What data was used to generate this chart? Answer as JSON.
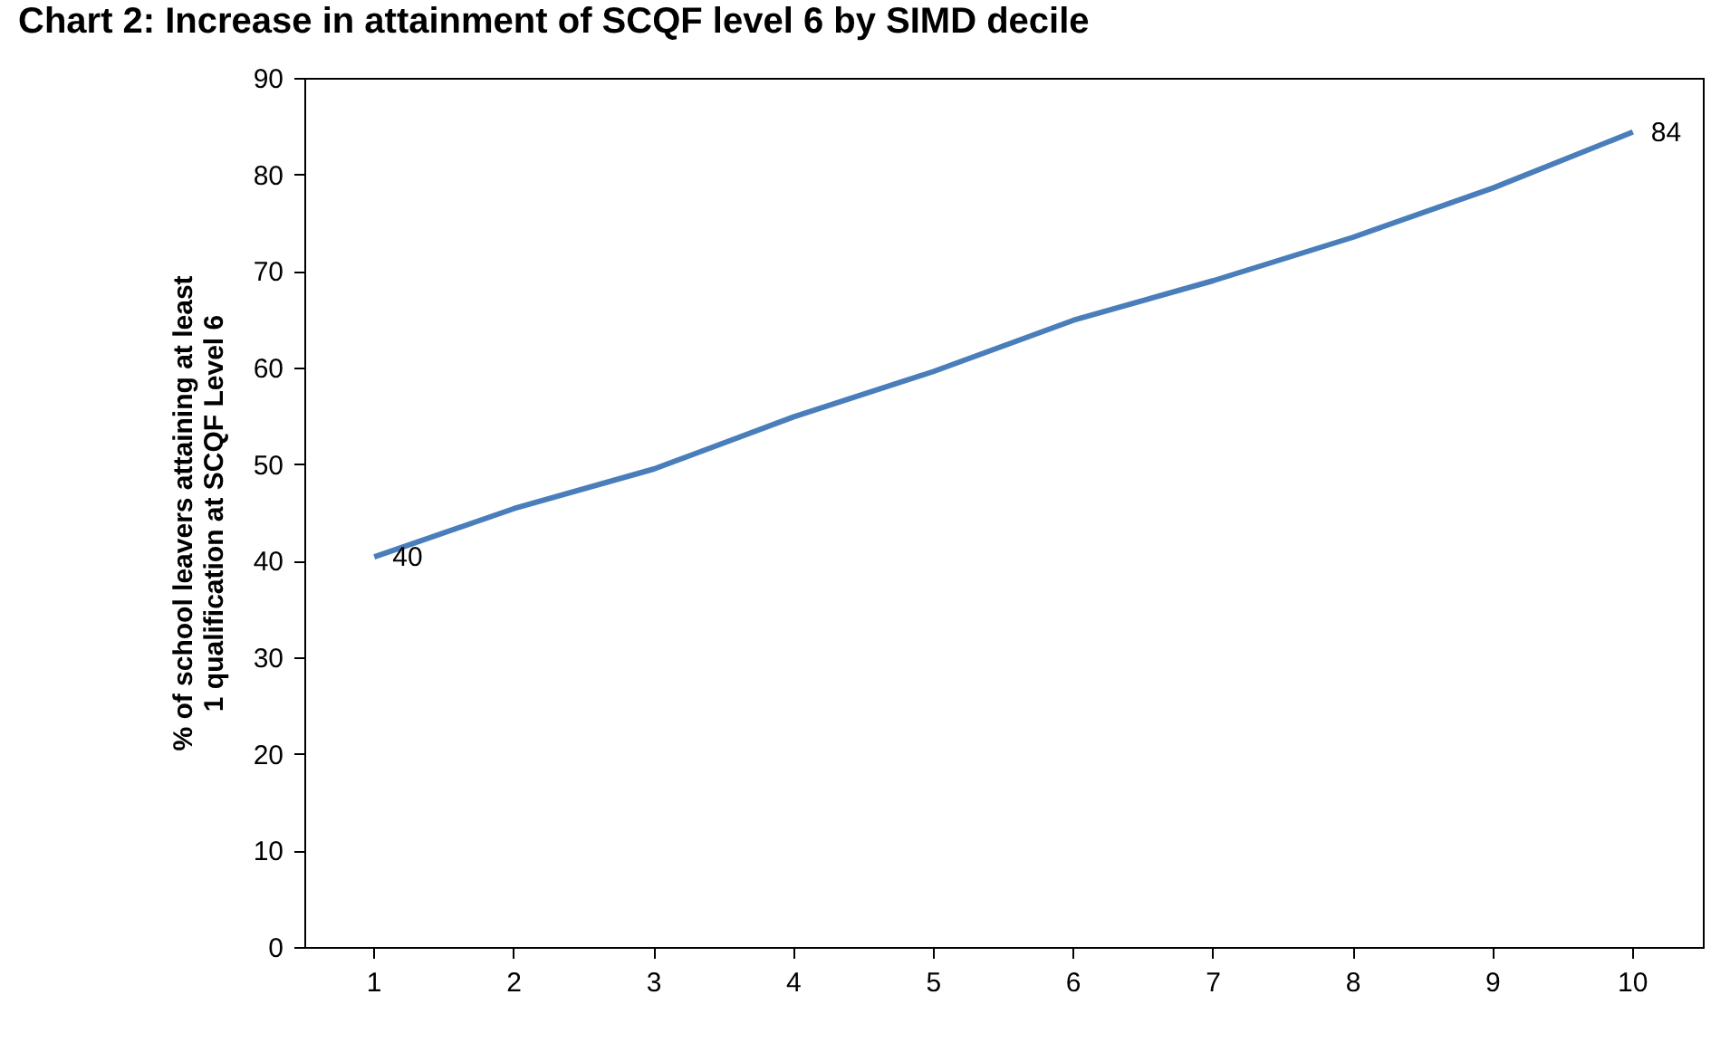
{
  "chart_data": {
    "type": "line",
    "title": "Chart 2: Increase in attainment of SCQF level 6 by SIMD decile",
    "ylabel": "% of school leavers attaining at least 1 qualification at SCQF Level 6",
    "categories": [
      "1",
      "2",
      "3",
      "4",
      "5",
      "6",
      "7",
      "8",
      "9",
      "10"
    ],
    "series": [
      {
        "color": "#4a7ebb",
        "values": [
          40.4,
          45.4,
          49.5,
          54.9,
          59.6,
          64.9,
          69,
          73.5,
          78.6,
          84.4
        ],
        "value_labels": [
          "40",
          null,
          null,
          null,
          null,
          null,
          null,
          null,
          null,
          "84"
        ]
      }
    ],
    "ylim": [
      0,
      90
    ],
    "yticks": [
      0,
      10,
      20,
      30,
      40,
      50,
      60,
      70,
      80,
      90
    ],
    "grid": false,
    "legend": false,
    "marker": "none",
    "line_style": "solid"
  }
}
